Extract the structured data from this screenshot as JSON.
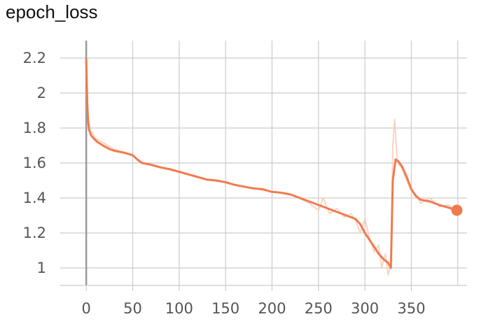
{
  "chart_data": {
    "type": "line",
    "title": "epoch_loss",
    "xlabel": "",
    "ylabel": "",
    "xlim": [
      -28,
      410
    ],
    "ylim": [
      0.9,
      2.3
    ],
    "x_ticks": [
      0,
      50,
      100,
      150,
      200,
      250,
      300,
      350
    ],
    "x_tick_labels": [
      "0",
      "50",
      "100",
      "150",
      "200",
      "250",
      "300",
      "350"
    ],
    "y_ticks": [
      1,
      1.2,
      1.4,
      1.6,
      1.8,
      2,
      2.2
    ],
    "y_tick_labels": [
      "1",
      "1.2",
      "1.4",
      "1.6",
      "1.8",
      "2",
      "2.2"
    ],
    "grid": true,
    "legend": "none",
    "colors": {
      "smoothed": "#f07b4f",
      "raw": "#f7c9b6",
      "grid": "#cccccc",
      "zero_line": "#999999"
    },
    "series": [
      {
        "role": "smoothed",
        "x": [
          0,
          1,
          2,
          3,
          5,
          8,
          12,
          18,
          25,
          30,
          40,
          50,
          55,
          60,
          70,
          80,
          90,
          100,
          110,
          120,
          130,
          140,
          150,
          160,
          170,
          180,
          190,
          200,
          210,
          220,
          230,
          240,
          250,
          260,
          270,
          280,
          290,
          295,
          300,
          305,
          310,
          315,
          320,
          325,
          328,
          330,
          333,
          336,
          340,
          345,
          350,
          355,
          360,
          370,
          380,
          390,
          399
        ],
        "y": [
          2.2,
          1.95,
          1.84,
          1.79,
          1.76,
          1.74,
          1.72,
          1.7,
          1.68,
          1.67,
          1.66,
          1.645,
          1.62,
          1.6,
          1.59,
          1.575,
          1.565,
          1.55,
          1.535,
          1.52,
          1.505,
          1.5,
          1.49,
          1.475,
          1.465,
          1.455,
          1.45,
          1.435,
          1.43,
          1.42,
          1.4,
          1.38,
          1.36,
          1.34,
          1.32,
          1.3,
          1.28,
          1.25,
          1.2,
          1.16,
          1.12,
          1.08,
          1.05,
          1.03,
          1.0,
          1.5,
          1.62,
          1.61,
          1.58,
          1.52,
          1.45,
          1.41,
          1.39,
          1.38,
          1.36,
          1.345,
          1.33
        ]
      },
      {
        "role": "raw",
        "x": [
          0,
          2,
          5,
          10,
          20,
          30,
          40,
          50,
          60,
          75,
          90,
          105,
          120,
          135,
          150,
          165,
          180,
          195,
          210,
          225,
          240,
          250,
          255,
          262,
          270,
          278,
          285,
          290,
          295,
          300,
          305,
          310,
          315,
          318,
          322,
          325,
          328,
          330,
          332,
          335,
          340,
          345,
          350,
          355,
          360,
          370,
          380,
          390,
          399
        ],
        "y": [
          2.2,
          1.86,
          1.78,
          1.74,
          1.71,
          1.68,
          1.66,
          1.645,
          1.6,
          1.58,
          1.56,
          1.54,
          1.52,
          1.5,
          1.49,
          1.47,
          1.455,
          1.44,
          1.43,
          1.41,
          1.37,
          1.33,
          1.4,
          1.31,
          1.34,
          1.29,
          1.31,
          1.27,
          1.2,
          1.28,
          1.17,
          1.09,
          1.13,
          1.0,
          1.08,
          0.96,
          1.02,
          1.7,
          1.85,
          1.6,
          1.57,
          1.5,
          1.44,
          1.42,
          1.37,
          1.4,
          1.35,
          1.36,
          1.32
        ]
      }
    ]
  }
}
